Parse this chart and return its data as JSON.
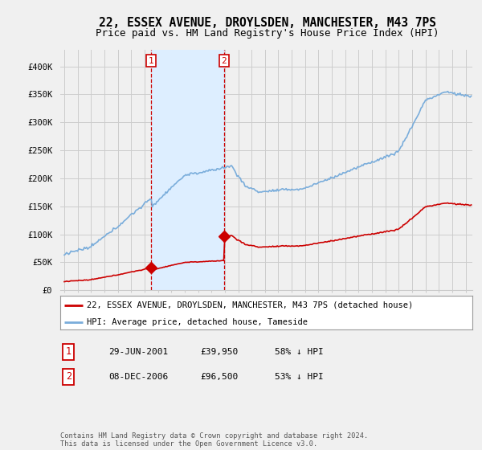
{
  "title": "22, ESSEX AVENUE, DROYLSDEN, MANCHESTER, M43 7PS",
  "subtitle": "Price paid vs. HM Land Registry's House Price Index (HPI)",
  "ylim": [
    0,
    420000
  ],
  "yticks": [
    0,
    50000,
    100000,
    150000,
    200000,
    250000,
    300000,
    350000,
    400000
  ],
  "ytick_labels": [
    "£0",
    "£50K",
    "£100K",
    "£150K",
    "£200K",
    "£250K",
    "£300K",
    "£350K",
    "£400K"
  ],
  "background_color": "#f0f0f0",
  "plot_bg_color": "#f0f0f0",
  "grid_color": "#cccccc",
  "purchase1_year": 2001.496,
  "purchase1_price": 39950,
  "purchase2_year": 2006.936,
  "purchase2_price": 96500,
  "house_line_color": "#cc0000",
  "hpi_line_color": "#7aaddb",
  "shade_color": "#ddeeff",
  "legend_house": "22, ESSEX AVENUE, DROYLSDEN, MANCHESTER, M43 7PS (detached house)",
  "legend_hpi": "HPI: Average price, detached house, Tameside",
  "table_row1": [
    "1",
    "29-JUN-2001",
    "£39,950",
    "58% ↓ HPI"
  ],
  "table_row2": [
    "2",
    "08-DEC-2006",
    "£96,500",
    "53% ↓ HPI"
  ],
  "footer": "Contains HM Land Registry data © Crown copyright and database right 2024.\nThis data is licensed under the Open Government Licence v3.0.",
  "title_fontsize": 10.5,
  "subtitle_fontsize": 9,
  "tick_fontsize": 7.5,
  "xstart": 1995.0,
  "xend": 2025.25
}
